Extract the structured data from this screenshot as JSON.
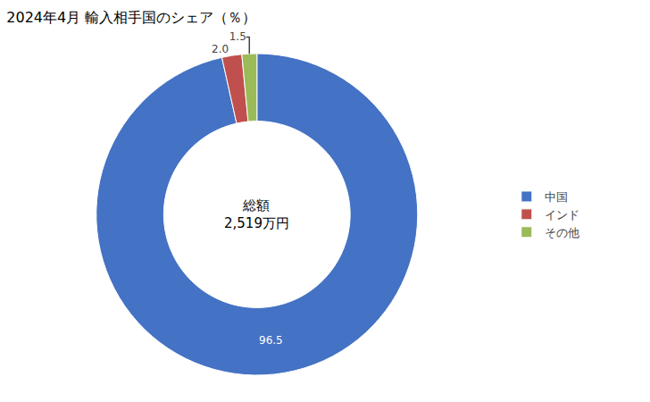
{
  "chart_data": {
    "type": "donut",
    "title": "2024年4月 輸入相手国のシェア（％）",
    "categories": [
      "中国",
      "インド",
      "その他"
    ],
    "values": [
      96.5,
      2.0,
      1.5
    ],
    "value_labels": [
      "96.5",
      "2.0",
      "1.5"
    ],
    "data_labels": true,
    "colors": [
      "#4472C4",
      "#C0504D",
      "#9BBB59"
    ],
    "annotations": [
      "総額",
      "2,519万円"
    ],
    "legend": "right"
  }
}
